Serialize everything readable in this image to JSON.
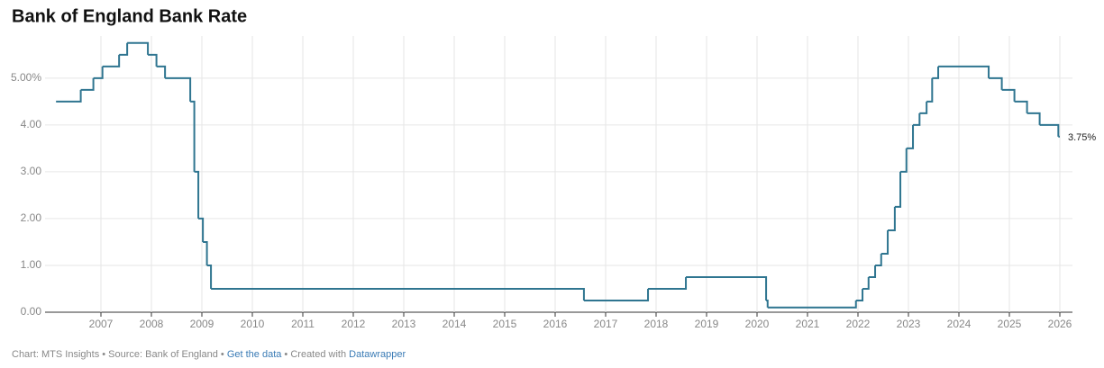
{
  "chart_data": {
    "type": "step",
    "title": "Bank of England Bank Rate",
    "x": [
      2006.11,
      2006.6,
      2006.85,
      2007.03,
      2007.36,
      2007.52,
      2007.93,
      2008.1,
      2008.27,
      2008.77,
      2008.85,
      2008.93,
      2009.02,
      2009.1,
      2009.18,
      2016.57,
      2017.84,
      2018.59,
      2020.18,
      2020.21,
      2021.96,
      2022.09,
      2022.21,
      2022.34,
      2022.46,
      2022.59,
      2022.73,
      2022.84,
      2022.96,
      2023.09,
      2023.22,
      2023.36,
      2023.47,
      2023.59,
      2024.59,
      2024.85,
      2025.1,
      2025.35,
      2025.6,
      2025.97,
      2026.0
    ],
    "values": [
      4.5,
      4.75,
      5.0,
      5.25,
      5.5,
      5.75,
      5.5,
      5.25,
      5.0,
      4.5,
      3.0,
      2.0,
      1.5,
      1.0,
      0.5,
      0.25,
      0.5,
      0.75,
      0.25,
      0.1,
      0.25,
      0.5,
      0.75,
      1.0,
      1.25,
      1.75,
      2.25,
      3.0,
      3.5,
      4.0,
      4.25,
      4.5,
      5.0,
      5.25,
      5.0,
      4.75,
      4.5,
      4.25,
      4.0,
      3.75,
      3.75
    ],
    "value_labels": [
      null,
      null,
      null,
      null,
      null,
      null,
      null,
      null,
      null,
      null,
      null,
      null,
      null,
      null,
      null,
      null,
      null,
      null,
      null,
      null,
      null,
      null,
      null,
      null,
      null,
      null,
      null,
      null,
      null,
      null,
      null,
      null,
      null,
      null,
      null,
      null,
      null,
      null,
      null,
      null,
      "3.75%"
    ],
    "color": "#2f7590",
    "xlim": [
      2006.0,
      2026.25
    ],
    "xticks": [
      2007,
      2008,
      2009,
      2010,
      2011,
      2012,
      2013,
      2014,
      2015,
      2016,
      2017,
      2018,
      2019,
      2020,
      2021,
      2022,
      2023,
      2024,
      2025,
      2026
    ],
    "ylim": [
      0,
      5.9
    ],
    "yticks": [
      {
        "value": 0,
        "label": "0.00"
      },
      {
        "value": 1,
        "label": "1.00"
      },
      {
        "value": 2,
        "label": "2.00"
      },
      {
        "value": 3,
        "label": "3.00"
      },
      {
        "value": 4,
        "label": "4.00"
      },
      {
        "value": 5,
        "label": "5.00%"
      }
    ],
    "grid": true
  },
  "footer": {
    "text": "Chart: MTS Insights • Source: Bank of England • ",
    "link1": "Get the data",
    "mid": " • Created with ",
    "link2": "Datawrapper"
  }
}
